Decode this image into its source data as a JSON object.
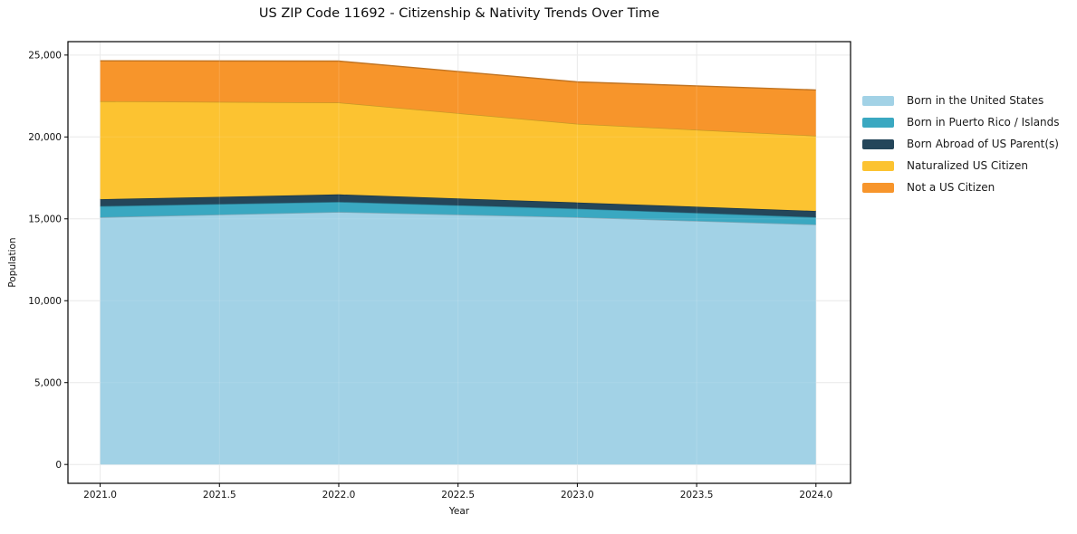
{
  "title": "US ZIP Code 11692 - Citizenship & Nativity Trends Over Time",
  "chart_data": {
    "type": "area",
    "stacked": true,
    "title": "US ZIP Code 11692 - Citizenship & Nativity Trends Over Time",
    "xlabel": "Year",
    "ylabel": "Population",
    "x": [
      2021.0,
      2022.0,
      2023.0,
      2024.0
    ],
    "series": [
      {
        "name": "Born in the United States",
        "color": "#a2d2e6",
        "values": [
          15100,
          15420,
          15100,
          14650
        ]
      },
      {
        "name": "Born in Puerto Rico / Islands",
        "color": "#3aa8c1",
        "values": [
          670,
          610,
          520,
          450
        ]
      },
      {
        "name": "Born Abroad of US Parent(s)",
        "color": "#24465a",
        "values": [
          430,
          460,
          380,
          380
        ]
      },
      {
        "name": "Naturalized US Citizen",
        "color": "#fcc331",
        "values": [
          5980,
          5610,
          4800,
          4590
        ]
      },
      {
        "name": "Not a US Citizen",
        "color": "#f7952b",
        "values": [
          2470,
          2530,
          2560,
          2800
        ]
      }
    ],
    "stack_totals": [
      24650,
      24630,
      23360,
      22870
    ],
    "xlim": [
      2020.865,
      2024.145
    ],
    "ylim": [
      -1150,
      25820
    ],
    "xticks": [
      {
        "v": 2021.0,
        "label": "2021.0"
      },
      {
        "v": 2021.5,
        "label": "2021.5"
      },
      {
        "v": 2022.0,
        "label": "2022.0"
      },
      {
        "v": 2022.5,
        "label": "2022.5"
      },
      {
        "v": 2023.0,
        "label": "2023.0"
      },
      {
        "v": 2023.5,
        "label": "2023.5"
      },
      {
        "v": 2024.0,
        "label": "2024.0"
      }
    ],
    "yticks": [
      {
        "v": 0,
        "label": "0"
      },
      {
        "v": 5000,
        "label": "5,000"
      },
      {
        "v": 10000,
        "label": "10,000"
      },
      {
        "v": 15000,
        "label": "15,000"
      },
      {
        "v": 20000,
        "label": "20,000"
      },
      {
        "v": 25000,
        "label": "25,000"
      }
    ],
    "grid": true,
    "legend_position": "right-outside"
  }
}
